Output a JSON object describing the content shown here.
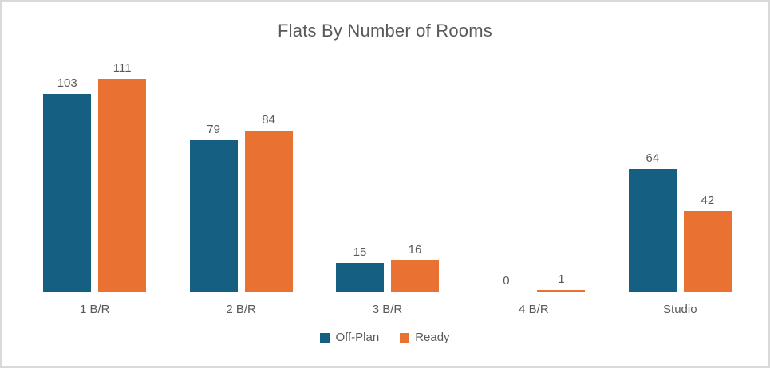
{
  "title": "Flats By Number of Rooms",
  "colors": {
    "series_offplan": "#156082",
    "series_ready": "#E97132",
    "axis_line": "#D9D9D9",
    "frame_border": "#D9D9D9",
    "text": "#595959",
    "background": "#FFFFFF"
  },
  "chart_data": {
    "type": "bar",
    "title": "Flats By Number of Rooms",
    "categories": [
      "1 B/R",
      "2 B/R",
      "3 B/R",
      "4 B/R",
      "Studio"
    ],
    "series": [
      {
        "name": "Off-Plan",
        "color": "#156082",
        "values": [
          103,
          79,
          15,
          0,
          64
        ]
      },
      {
        "name": "Ready",
        "color": "#E97132",
        "values": [
          111,
          84,
          16,
          1,
          42
        ]
      }
    ],
    "xlabel": "",
    "ylabel": "",
    "ylim": [
      0,
      120
    ],
    "grid": false,
    "data_labels": true,
    "legend_position": "bottom"
  }
}
